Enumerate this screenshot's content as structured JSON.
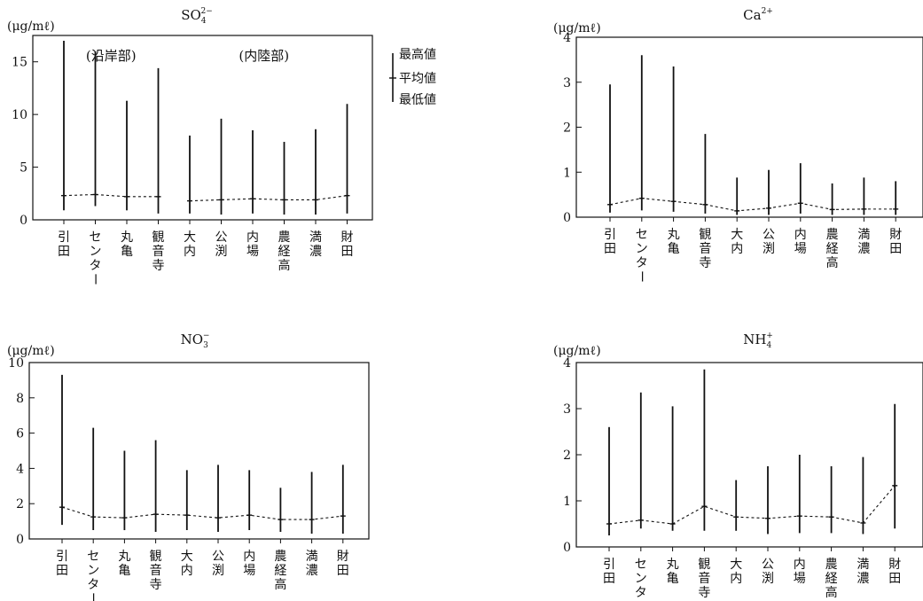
{
  "chart_data": [
    {
      "type": "range",
      "title": "SO₄²⁻",
      "title_base": "SO",
      "title_sub": "4",
      "title_sup": "2−",
      "unit": "(μg/mℓ)",
      "ylim": [
        0,
        17.5
      ],
      "yticks": [
        0,
        5,
        10,
        15
      ],
      "categories": [
        "引田",
        "センター",
        "丸亀",
        "観音寺",
        "大内",
        "公渕",
        "内場",
        "農経高",
        "満濃",
        "財田"
      ],
      "max": [
        17.0,
        16.0,
        11.3,
        14.4,
        8.0,
        9.6,
        8.5,
        7.4,
        8.6,
        11.0
      ],
      "mean": [
        2.3,
        2.4,
        2.2,
        2.2,
        1.8,
        1.9,
        2.0,
        1.9,
        1.9,
        2.3
      ],
      "min": [
        0.9,
        1.3,
        0.9,
        0.6,
        0.6,
        0.5,
        0.6,
        0.5,
        0.5,
        0.6
      ],
      "groups": [
        {
          "label": "(沿岸部)",
          "from": 0,
          "to": 3
        },
        {
          "label": "(内陸部)",
          "from": 4,
          "to": 9
        }
      ],
      "legend": {
        "max": "最高値",
        "mean": "平均値",
        "min": "最低値"
      }
    },
    {
      "type": "range",
      "title": "Ca²⁺",
      "title_base": "Ca",
      "title_sub": "",
      "title_sup": "2+",
      "unit": "(μg/mℓ)",
      "ylim": [
        0,
        4
      ],
      "yticks": [
        0,
        1,
        2,
        3,
        4
      ],
      "categories": [
        "引田",
        "センター",
        "丸亀",
        "観音寺",
        "大内",
        "公渕",
        "内場",
        "農経高",
        "満濃",
        "財田"
      ],
      "max": [
        2.95,
        3.6,
        3.35,
        1.85,
        0.88,
        1.05,
        1.2,
        0.75,
        0.88,
        0.8
      ],
      "mean": [
        0.28,
        0.42,
        0.35,
        0.28,
        0.14,
        0.2,
        0.31,
        0.17,
        0.18,
        0.18
      ],
      "min": [
        0.1,
        0.15,
        0.12,
        0.08,
        0.05,
        0.05,
        0.08,
        0.05,
        0.05,
        0.05
      ]
    },
    {
      "type": "range",
      "title": "NO₃⁻",
      "title_base": "NO",
      "title_sub": "3",
      "title_sup": "−",
      "unit": "(μg/mℓ)",
      "ylim": [
        0,
        10
      ],
      "yticks": [
        0,
        2,
        4,
        6,
        8,
        10
      ],
      "categories": [
        "引田",
        "センター",
        "丸亀",
        "観音寺",
        "大内",
        "公渕",
        "内場",
        "農経高",
        "満濃",
        "財田"
      ],
      "max": [
        9.3,
        6.3,
        5.0,
        5.6,
        3.9,
        4.2,
        3.9,
        2.9,
        3.8,
        4.2
      ],
      "mean": [
        1.8,
        1.25,
        1.2,
        1.4,
        1.35,
        1.2,
        1.35,
        1.1,
        1.1,
        1.3
      ],
      "min": [
        0.8,
        0.5,
        0.5,
        0.4,
        0.5,
        0.4,
        0.5,
        0.4,
        0.3,
        0.3
      ]
    },
    {
      "type": "range",
      "title": "NH₄⁺",
      "title_base": "NH",
      "title_sub": "4",
      "title_sup": "+",
      "unit": "(μg/mℓ)",
      "ylim": [
        0,
        4
      ],
      "yticks": [
        0,
        1,
        2,
        3,
        4
      ],
      "categories": [
        "引田",
        "センター",
        "丸亀",
        "観音寺",
        "大内",
        "公渕",
        "内場",
        "農経高",
        "満濃",
        "財田"
      ],
      "max": [
        2.6,
        3.35,
        3.05,
        3.85,
        1.45,
        1.75,
        2.0,
        1.75,
        1.95,
        3.1
      ],
      "mean": [
        0.5,
        0.58,
        0.5,
        0.88,
        0.65,
        0.62,
        0.67,
        0.65,
        0.52,
        1.33
      ],
      "min": [
        0.25,
        0.4,
        0.35,
        0.35,
        0.35,
        0.28,
        0.3,
        0.3,
        0.28,
        0.4
      ]
    }
  ]
}
